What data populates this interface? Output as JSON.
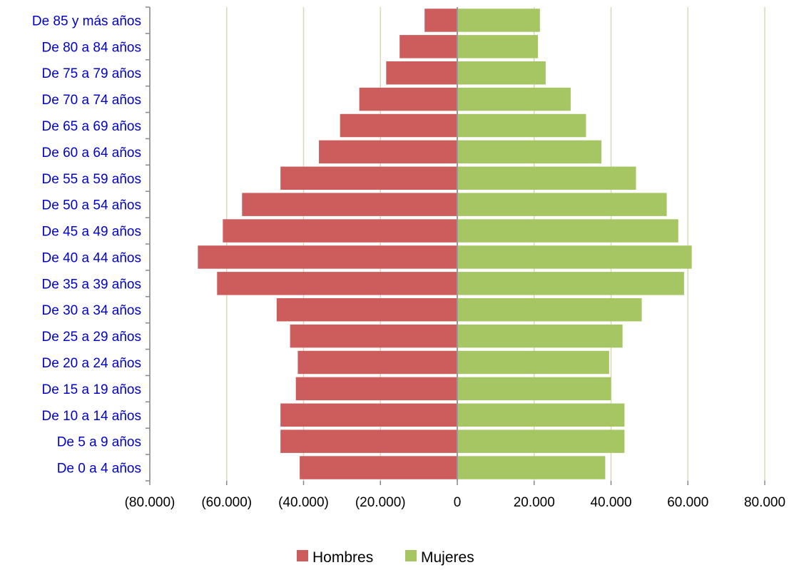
{
  "chart_data": {
    "type": "bar",
    "orientation": "horizontal",
    "layout": "population-pyramid",
    "categories": [
      "De 85 y más años",
      "De 80 a 84 años",
      "De 75 a 79 años",
      "De 70 a 74 años",
      "De 65 a 69 años",
      "De 60 a 64 años",
      "De 55 a 59 años",
      "De 50 a 54 años",
      "De 45 a 49 años",
      "De 40 a 44 años",
      "De 35 a 39 años",
      "De 30 a 34 años",
      "De 25 a 29 años",
      "De 20 a 24 años",
      "De 15 a 19 años",
      "De 10 a 14 años",
      "De 5 a 9 años",
      "De 0 a 4 años"
    ],
    "series": [
      {
        "name": "Hombres",
        "color": "#cd5c5c",
        "values": [
          -8500,
          -15000,
          -18500,
          -25500,
          -30500,
          -36000,
          -46000,
          -56000,
          -61000,
          -67500,
          -62500,
          -47000,
          -43500,
          -41500,
          -42000,
          -46000,
          -46000,
          -41000
        ]
      },
      {
        "name": "Mujeres",
        "color": "#a5c663",
        "values": [
          21500,
          21000,
          23000,
          29500,
          33500,
          37500,
          46500,
          54500,
          57500,
          61000,
          59000,
          48000,
          43000,
          39500,
          40000,
          43500,
          43500,
          38500
        ]
      }
    ],
    "xlim": [
      -80000,
      80000
    ],
    "x_ticks": [
      {
        "value": -80000,
        "label": "(80.000)"
      },
      {
        "value": -60000,
        "label": "(60.000)"
      },
      {
        "value": -40000,
        "label": "(40.000)"
      },
      {
        "value": -20000,
        "label": "(20.000)"
      },
      {
        "value": 0,
        "label": "0"
      },
      {
        "value": 20000,
        "label": "20.000"
      },
      {
        "value": 40000,
        "label": "40.000"
      },
      {
        "value": 60000,
        "label": "60.000"
      },
      {
        "value": 80000,
        "label": "80.000"
      }
    ],
    "grid": true,
    "grid_color": "#d9d9b8",
    "category_label_color": "#0000cc",
    "legend_position": "bottom"
  }
}
